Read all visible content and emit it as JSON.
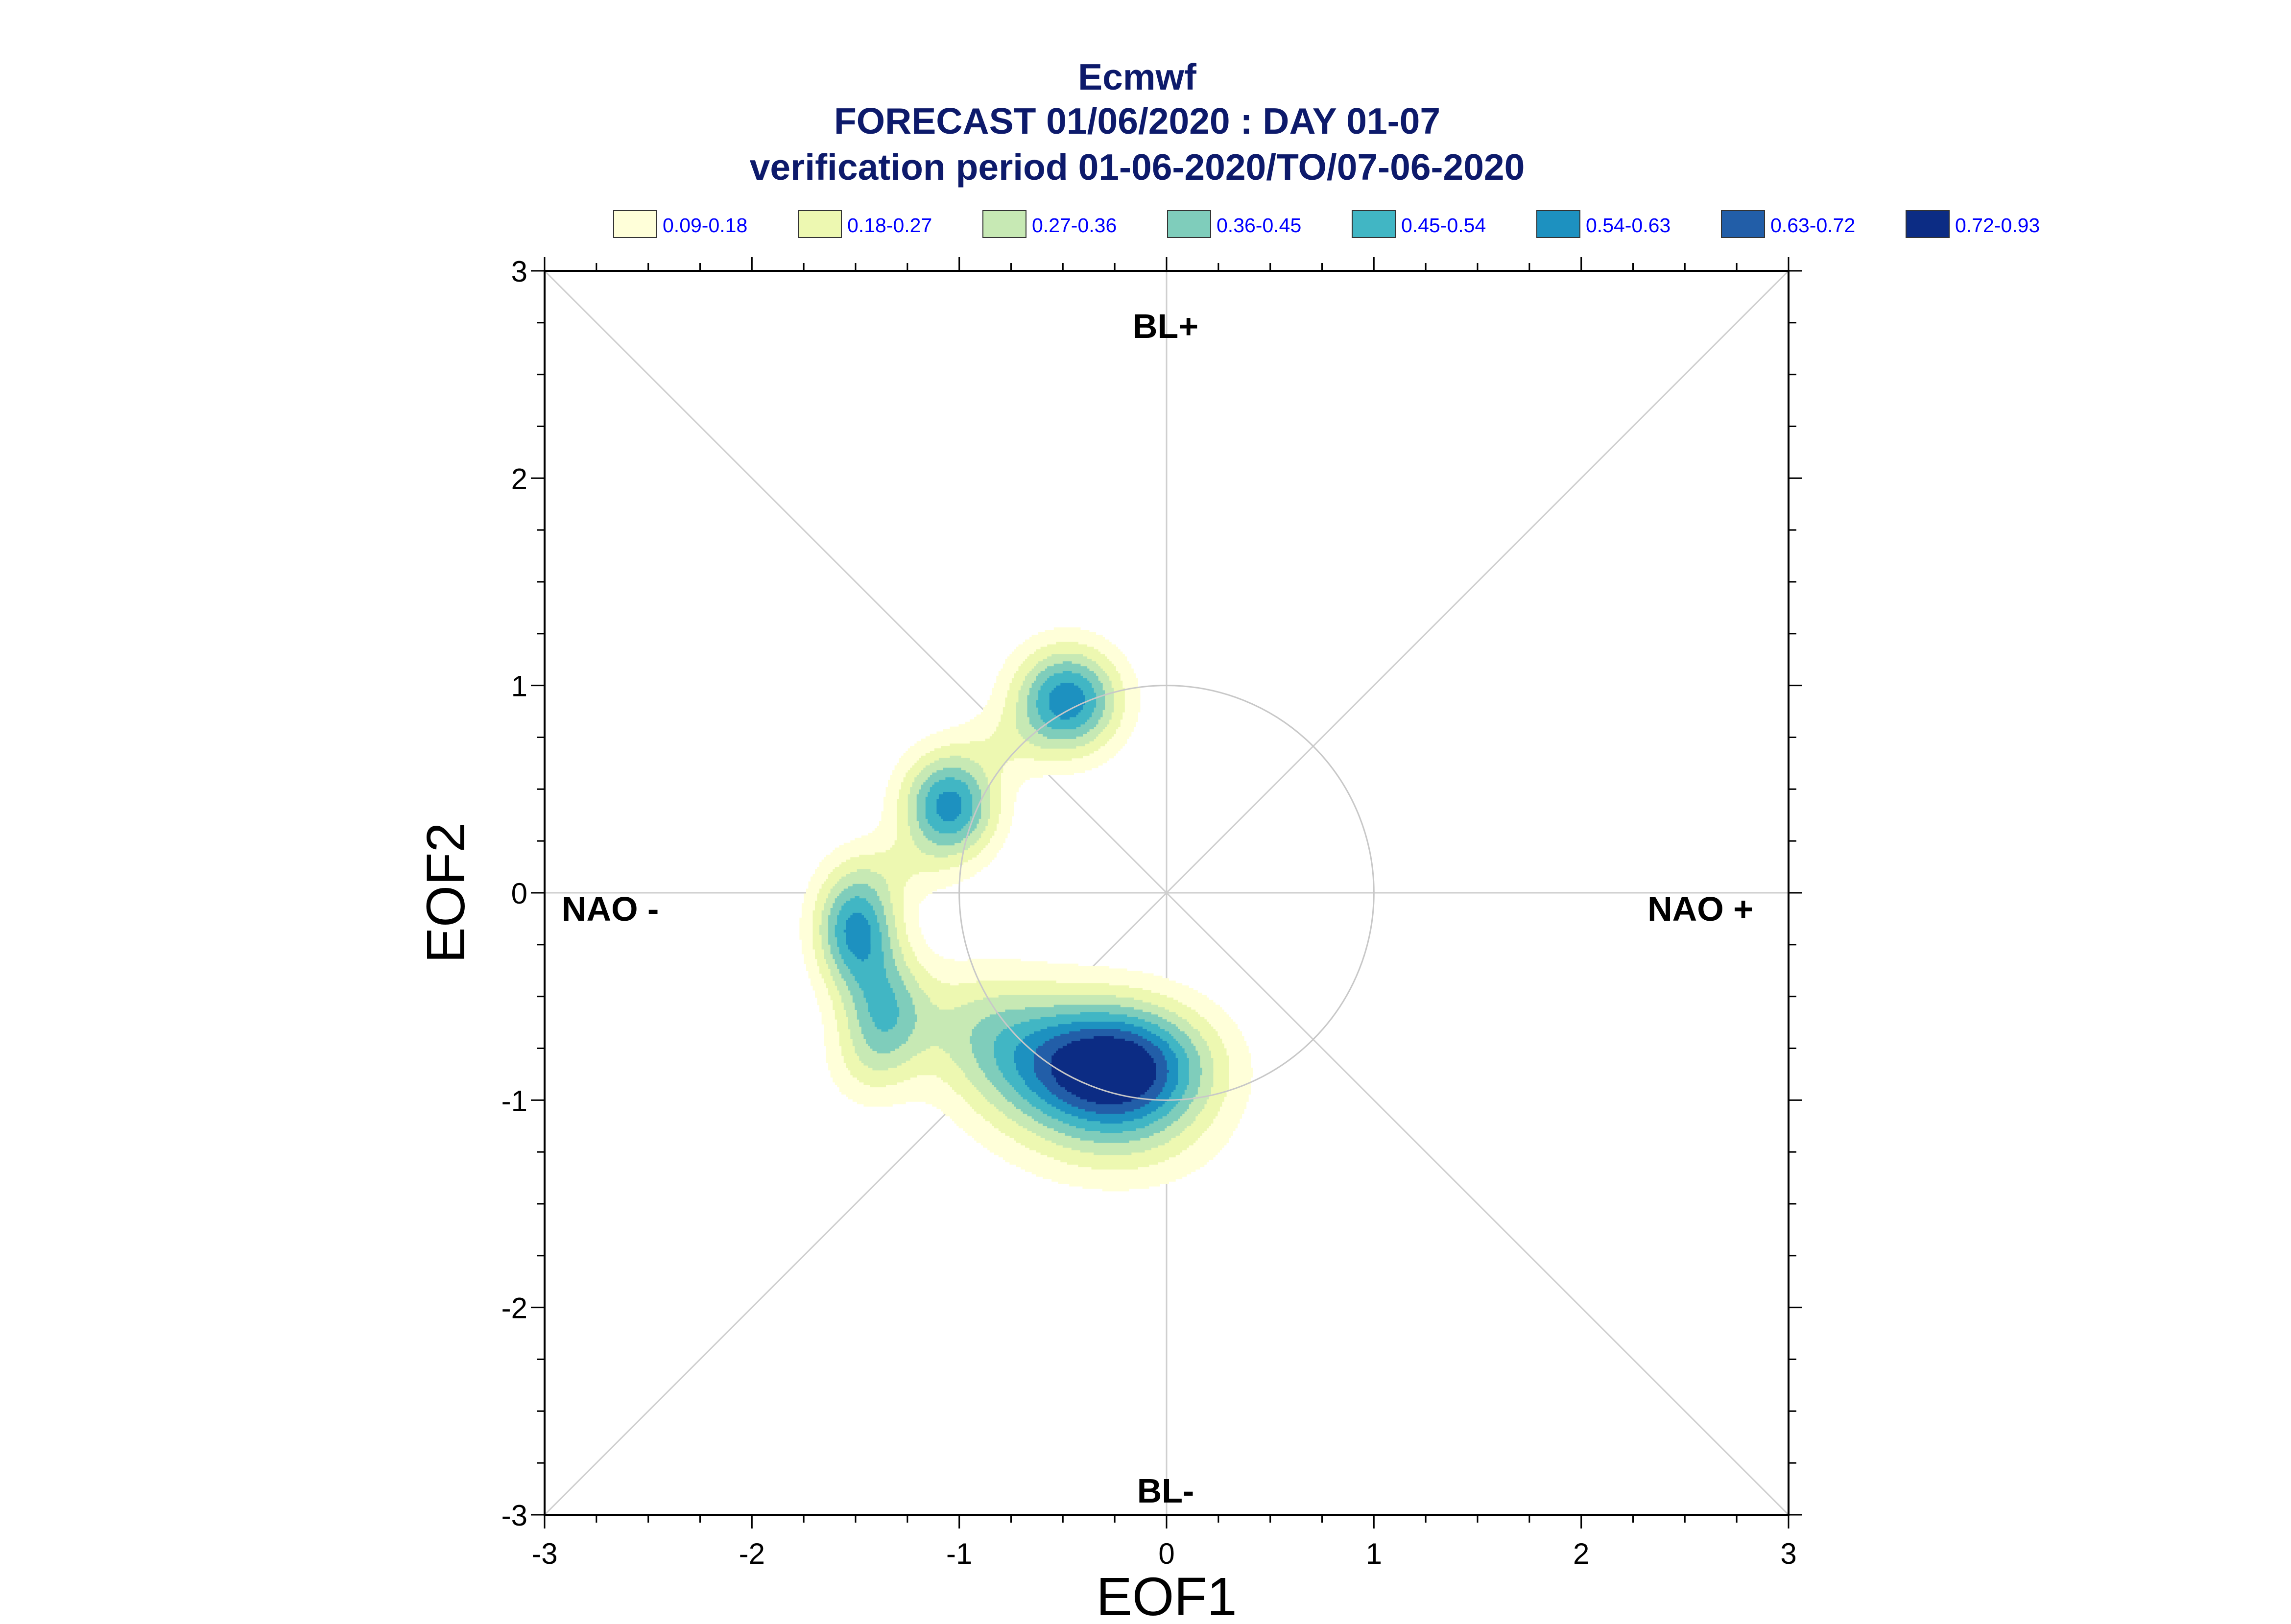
{
  "title": {
    "line1": "Ecmwf",
    "line2": "FORECAST 01/06/2020 : DAY 01-07",
    "line3": "verification period 01-06-2020/TO/07-06-2020"
  },
  "legend": [
    {
      "label": "0.09-0.18",
      "color": "#ffffd9"
    },
    {
      "label": "0.18-0.27",
      "color": "#edf8b1"
    },
    {
      "label": "0.27-0.36",
      "color": "#c7e9b4"
    },
    {
      "label": "0.36-0.45",
      "color": "#7fcdbb"
    },
    {
      "label": "0.45-0.54",
      "color": "#41b6c4"
    },
    {
      "label": "0.54-0.63",
      "color": "#1d91c0"
    },
    {
      "label": "0.63-0.72",
      "color": "#225ea8"
    },
    {
      "label": "0.72-0.93",
      "color": "#0c2c84"
    }
  ],
  "regimes": {
    "top": "BL+",
    "bottom": "BL-",
    "left": "NAO -",
    "right": "NAO +"
  },
  "chart_data": {
    "type": "contour",
    "xlabel": "EOF1",
    "ylabel": "EOF2",
    "xlim": [
      -3,
      3
    ],
    "ylim": [
      -3,
      3
    ],
    "xticks": [
      "-3",
      "-2",
      "-1",
      "0",
      "1",
      "2",
      "3"
    ],
    "yticks": [
      "-3",
      "-2",
      "-1",
      "0",
      "1",
      "2",
      "3"
    ],
    "reference_circle_radius": 1,
    "levels": [
      0.09,
      0.18,
      0.27,
      0.36,
      0.45,
      0.54,
      0.63,
      0.72,
      0.93
    ],
    "density_peaks": [
      {
        "x": -0.22,
        "y": -0.85,
        "peak": 0.93
      },
      {
        "x": -1.5,
        "y": -0.22,
        "peak": 0.7
      },
      {
        "x": -1.05,
        "y": 0.42,
        "peak": 0.6
      },
      {
        "x": -0.48,
        "y": 0.93,
        "peak": 0.62
      }
    ]
  }
}
